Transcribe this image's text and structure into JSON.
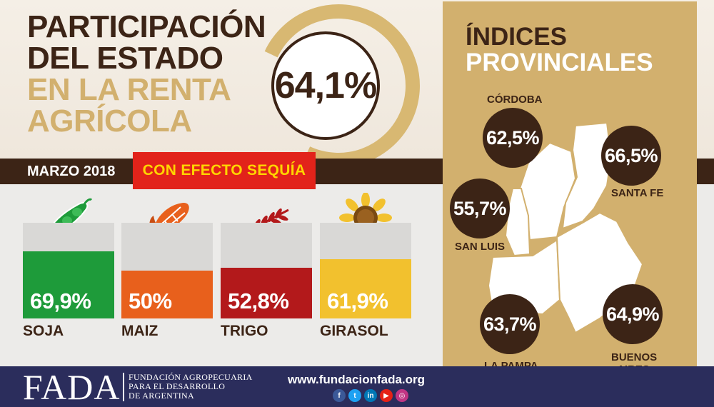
{
  "title": {
    "line1": "PARTICIPACIÓN",
    "line2": "DEL ESTADO",
    "line3": "EN LA RENTA",
    "line4": "AGRÍCOLA"
  },
  "national_value": "64,1%",
  "date_label": "MARZO 2018",
  "condition_label": "CON EFECTO SEQUÍA",
  "crops": [
    {
      "name": "SOJA",
      "value_label": "69,9%",
      "value": 69.9,
      "color": "#1e9b3a",
      "icon": "soybean-icon"
    },
    {
      "name": "MAIZ",
      "value_label": "50%",
      "value": 50,
      "color": "#e8601c",
      "icon": "corn-icon"
    },
    {
      "name": "TRIGO",
      "value_label": "52,8%",
      "value": 52.8,
      "color": "#b3191b",
      "icon": "wheat-icon"
    },
    {
      "name": "GIRASOL",
      "value_label": "61,9%",
      "value": 61.9,
      "color": "#f2c12e",
      "icon": "sunflower-icon"
    }
  ],
  "provincial": {
    "title_line1": "ÍNDICES",
    "title_line2": "PROVINCIALES",
    "provinces": [
      {
        "name": "CÓRDOBA",
        "value": "62,5%"
      },
      {
        "name": "SANTA FE",
        "value": "66,5%"
      },
      {
        "name": "SAN LUIS",
        "value": "55,7%"
      },
      {
        "name": "LA PAMPA",
        "value": "63,7%"
      },
      {
        "name": "BUENOS",
        "name2": "AIRES",
        "value": "64,9%"
      }
    ]
  },
  "footer": {
    "logo": "FADA",
    "org_line1": "FUNDACIÓN AGROPECUARIA",
    "org_line2": "PARA EL DESARROLLO",
    "org_line3": "DE ARGENTINA",
    "url": "www.fundacionfada.org",
    "socials": [
      {
        "icon": "facebook-icon",
        "glyph": "f",
        "color": "#3b5998"
      },
      {
        "icon": "twitter-icon",
        "glyph": "t",
        "color": "#1da1f2"
      },
      {
        "icon": "linkedin-icon",
        "glyph": "in",
        "color": "#0077b5"
      },
      {
        "icon": "youtube-icon",
        "glyph": "▶",
        "color": "#e62117"
      },
      {
        "icon": "instagram-icon",
        "glyph": "◎",
        "color": "#c13584"
      }
    ]
  },
  "colors": {
    "brown": "#3c2416",
    "gold": "#d2b06e",
    "red": "#e2231a",
    "yellow": "#ffd500",
    "navy": "#2b2d5c"
  }
}
